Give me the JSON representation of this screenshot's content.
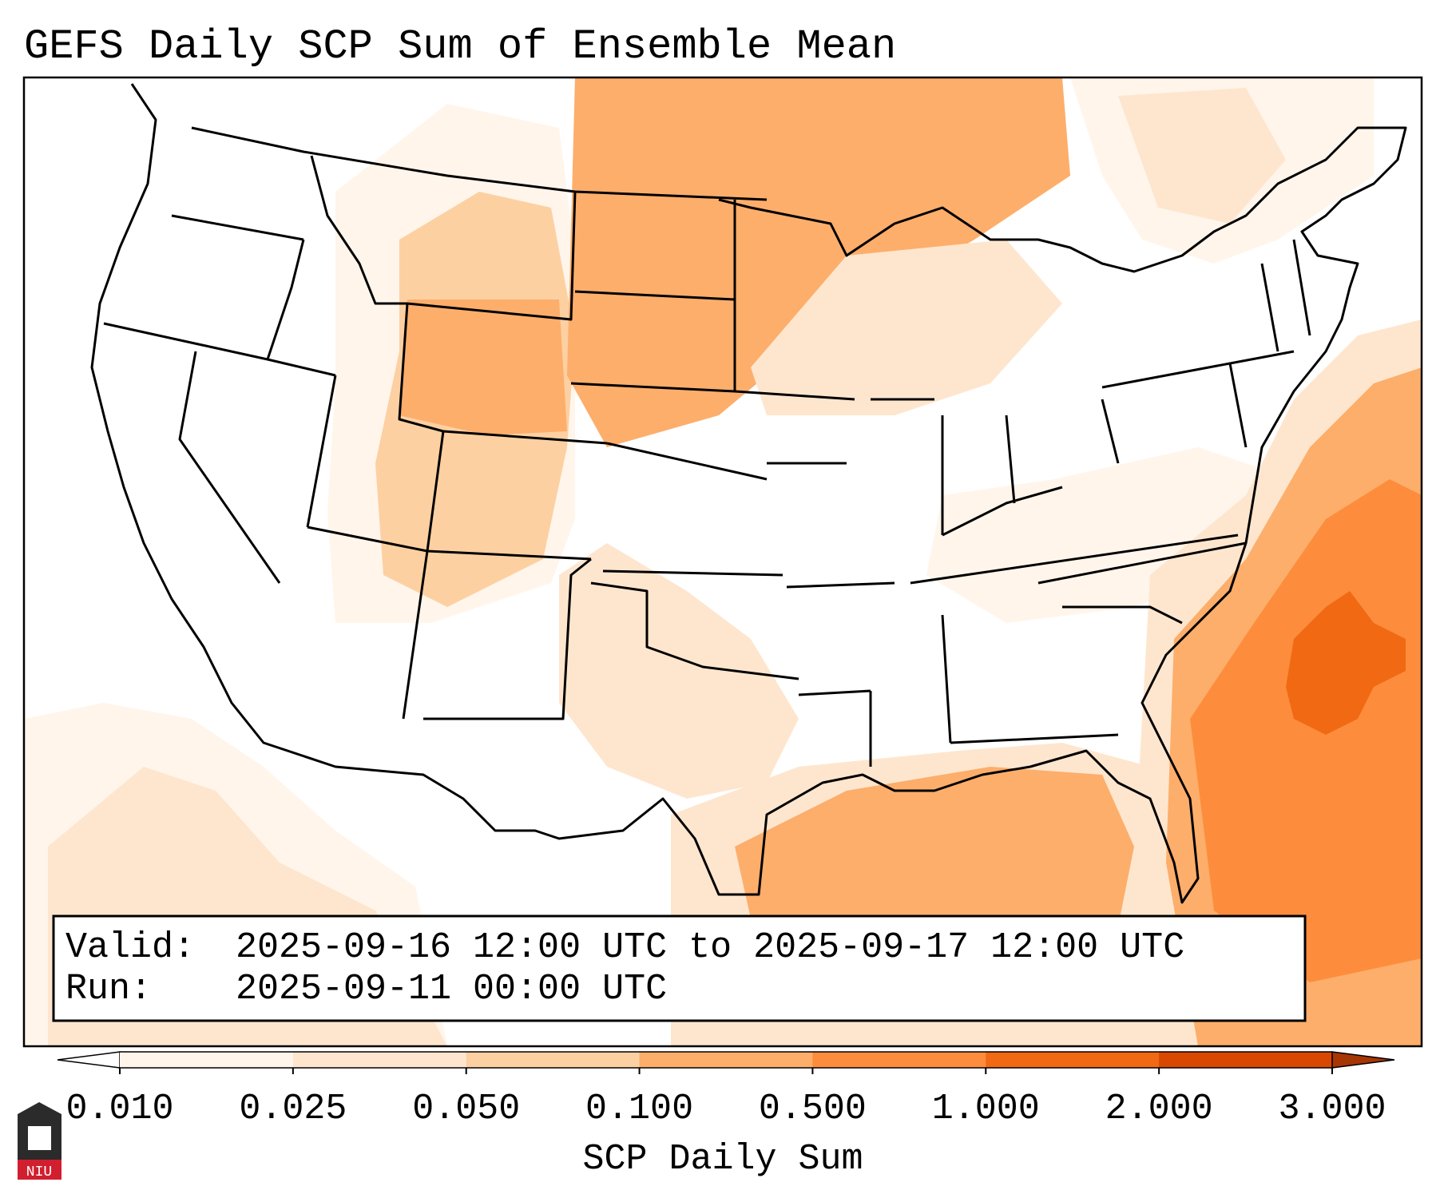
{
  "title": "GEFS Daily SCP Sum of Ensemble Mean",
  "info_box": {
    "valid_label": "Valid:",
    "valid_value": "2025-09-16 12:00 UTC to 2025-09-17 12:00 UTC",
    "run_label": "Run:",
    "run_value": "2025-09-11 00:00 UTC"
  },
  "colorbar": {
    "label": "SCP Daily Sum",
    "ticks": [
      "0.010",
      "0.025",
      "0.050",
      "0.100",
      "0.500",
      "1.000",
      "2.000",
      "3.000"
    ],
    "colors": [
      "#fff5eb",
      "#fee6ce",
      "#fdd0a2",
      "#fdae6b",
      "#fd8d3c",
      "#f16913",
      "#d94801",
      "#a63603"
    ],
    "extend": "both"
  },
  "logo": {
    "text": "NIU",
    "icon": "niu-logo-icon"
  },
  "map": {
    "region": "Contiguous United States",
    "field_levels": [
      "0.010",
      "0.025",
      "0.050",
      "0.100",
      "0.500",
      "1.000"
    ]
  }
}
